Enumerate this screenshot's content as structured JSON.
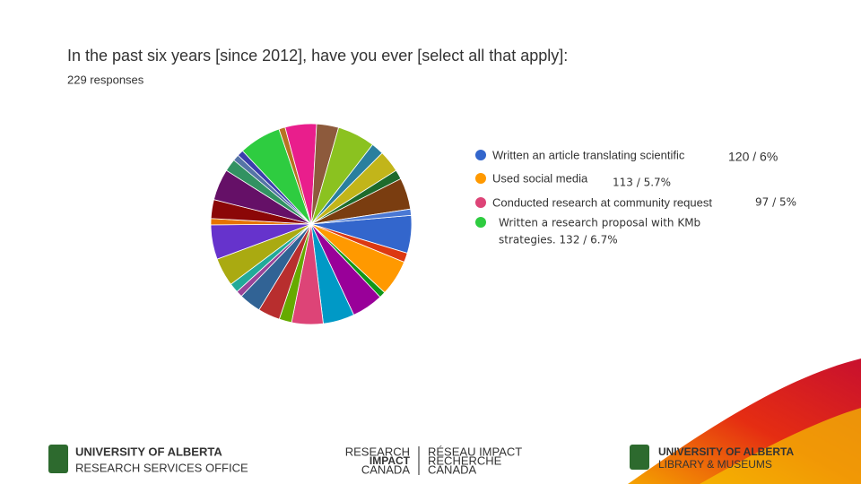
{
  "chart_data": {
    "type": "pie",
    "title": "In the past six years [since 2012], have you ever [select all that apply]:",
    "subtitle": "229 responses",
    "categories": [
      "Written an article translating scientific",
      null,
      "Used social media",
      null,
      null,
      null,
      "Conducted research at community request",
      null,
      null,
      null,
      null,
      null,
      null,
      null,
      null,
      null,
      null,
      null,
      null,
      null,
      "Written a research proposal with KMb",
      null,
      null,
      null,
      null,
      null,
      null,
      null,
      null,
      null
    ],
    "values": [
      6,
      1.5,
      5.7,
      1,
      5,
      5,
      5,
      2,
      3.5,
      3.5,
      1,
      1.5,
      4.5,
      5.5,
      1,
      3,
      5,
      2,
      1,
      1,
      6.7,
      1,
      5,
      3.5,
      6,
      2,
      3.5,
      1.5,
      5,
      1
    ],
    "colors": [
      "#3366cc",
      "#dc3912",
      "#ff9900",
      "#109618",
      "#990099",
      "#0099c6",
      "#dd4477",
      "#66aa00",
      "#b82e2e",
      "#316395",
      "#994499",
      "#22aa99",
      "#aaaa11",
      "#6633cc",
      "#e67300",
      "#8b0707",
      "#651067",
      "#329262",
      "#5574a6",
      "#3b3eac",
      "#2ecc40",
      "#b77322",
      "#e91e8c",
      "#8d5a3c",
      "#8bc220",
      "#2a7f9e",
      "#c2b51a",
      "#1d6b2c",
      "#7a3d10",
      "#4a78d4"
    ],
    "annotations": [
      "120 / 6%",
      "113 / 5.7%",
      "97 / 5%",
      "strategies. 132 / 6.7%"
    ]
  },
  "footer": {
    "left": [
      "UNIVERSITY OF ALBERTA",
      "RESEARCH SERVICES OFFICE"
    ],
    "center": [
      "RESEARCH",
      "IMPACT",
      "CANADA",
      "RÉSEAU IMPACT",
      "RECHERCHE",
      "CANADA"
    ],
    "right": [
      "UNIVERSITY OF ALBERTA",
      "LIBRARY & MUSEUMS"
    ]
  }
}
